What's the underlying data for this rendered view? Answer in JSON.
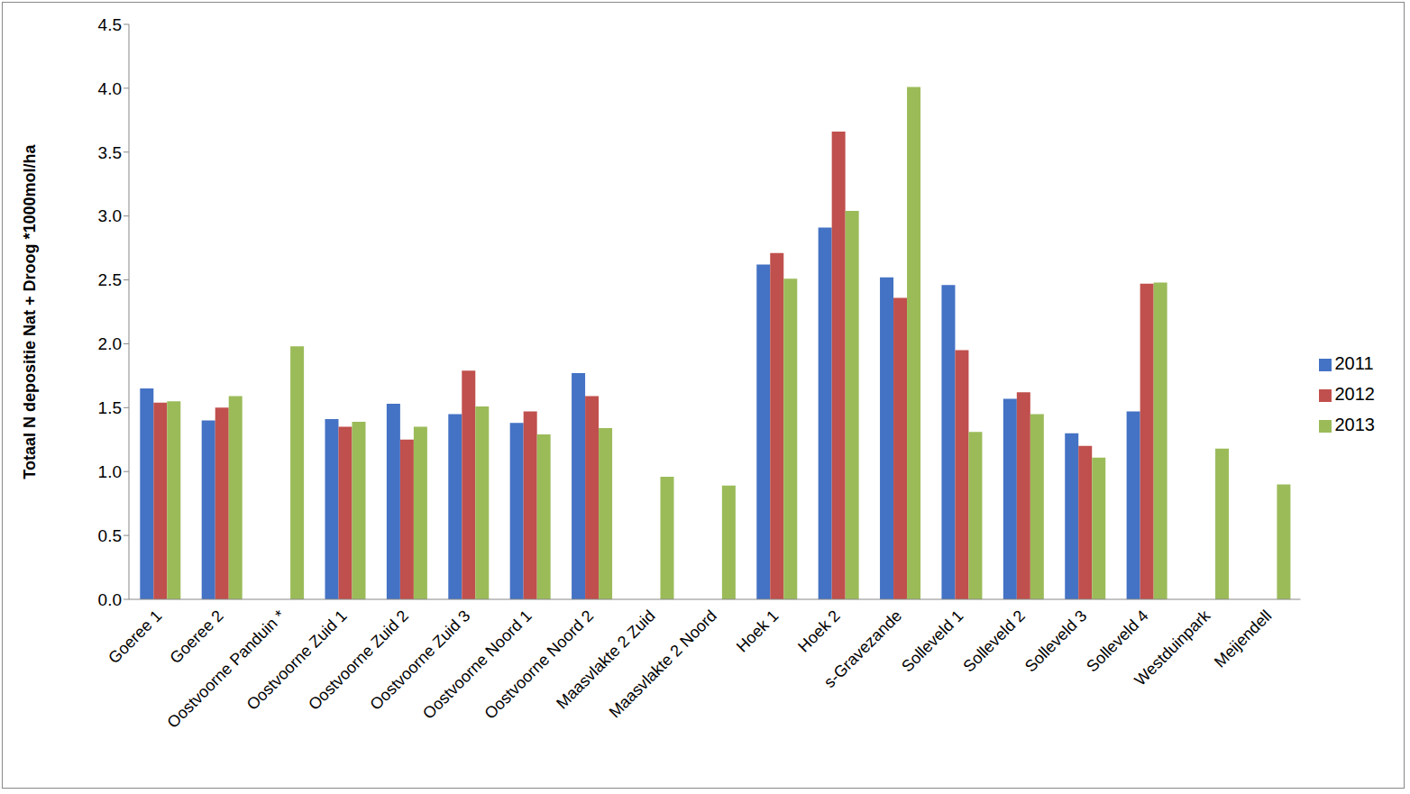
{
  "chart_data": {
    "type": "bar",
    "y_label": "Totaal N depositie Nat + Droog *1000mol/ha",
    "categories": [
      "Goeree 1",
      "Goeree 2",
      "Oostvoorne Panduin *",
      "Oostvoorne Zuid 1",
      "Oostvoorne Zuid 2",
      "Oostvoorne Zuid 3",
      "Oostvoorne Noord 1",
      "Oostvoorne Noord 2",
      "Maasvlakte 2 Zuid",
      "Maasvlakte 2 Noord",
      "Hoek 1",
      "Hoek 2",
      "s-Gravezande",
      "Solleveld 1",
      "Solleveld 2",
      "Solleveld 3",
      "Solleveld 4",
      "Westduinpark",
      "Meijendell"
    ],
    "series": [
      {
        "name": "2011",
        "color": "#4472c4",
        "values": [
          1.65,
          1.4,
          null,
          1.41,
          1.53,
          1.45,
          1.38,
          1.77,
          null,
          null,
          2.62,
          2.91,
          2.52,
          2.46,
          1.57,
          1.3,
          1.47,
          null,
          null
        ]
      },
      {
        "name": "2012",
        "color": "#c0504d",
        "values": [
          1.54,
          1.5,
          null,
          1.35,
          1.25,
          1.79,
          1.47,
          1.59,
          null,
          null,
          2.71,
          3.66,
          2.36,
          1.95,
          1.62,
          1.2,
          2.47,
          null,
          null
        ]
      },
      {
        "name": "2013",
        "color": "#9bbb59",
        "values": [
          1.55,
          1.59,
          1.98,
          1.39,
          1.35,
          1.51,
          1.29,
          1.34,
          0.96,
          0.89,
          2.51,
          3.04,
          4.01,
          1.31,
          1.45,
          1.11,
          2.48,
          1.18,
          0.9
        ]
      }
    ],
    "ylim": [
      0,
      4.5
    ],
    "yticks": [
      {
        "value": 0,
        "label": "0.0"
      },
      0.5,
      {
        "value": 1,
        "label": "1.0"
      },
      1.5,
      {
        "value": 2,
        "label": "2.0"
      },
      2.5,
      {
        "value": 3,
        "label": "3.0"
      },
      3.5,
      {
        "value": 4,
        "label": "4.0"
      },
      4.5
    ],
    "grid": false,
    "legend": "right"
  }
}
